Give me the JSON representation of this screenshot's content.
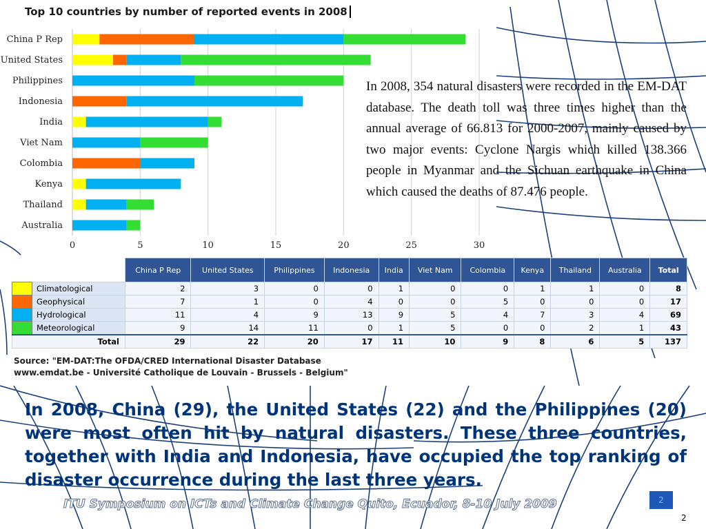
{
  "slide": {
    "paragraph": "In 2008, 354 natural disasters were recorded in the EM-DAT database. The death toll was three times higher than the annual average of 66.813 for 2000-2007, mainly caused by two major events: Cyclone Nargis which killed 138.366 people in Myanmar and the Sichuan earthquake in China which caused the deaths of 87.476 people.",
    "source_line1": "Source: \"EM-DAT:The OFDA/CRED International Disaster Database",
    "source_line2": "www.emdat.be - Université Catholique de Louvain - Brussels - Belgium\"",
    "summary": "In 2008, China (29), the United States (22) and the Philippines (20) were most often hit by natural disasters. These three countries, together with India and Indonesia, have occupied the top ranking of disaster occurrence during the last three years.",
    "footer": "ITU Symposium on ICTs and Climate Change Quito, Ecuador, 8-10 July 2009",
    "page_box": "2",
    "page_number": "2"
  },
  "chart_data": {
    "type": "bar",
    "orientation": "horizontal",
    "stacked": true,
    "title": "Top 10 countries by number of reported events in 2008",
    "categories": [
      "China P Rep",
      "United States",
      "Philippines",
      "Indonesia",
      "India",
      "Viet Nam",
      "Colombia",
      "Kenya",
      "Thailand",
      "Australia"
    ],
    "series": [
      {
        "name": "Climatological",
        "color": "#ffff00",
        "values": [
          2,
          3,
          0,
          0,
          1,
          0,
          0,
          1,
          1,
          0
        ]
      },
      {
        "name": "Geophysical",
        "color": "#ff6600",
        "values": [
          7,
          1,
          0,
          4,
          0,
          0,
          5,
          0,
          0,
          0
        ]
      },
      {
        "name": "Hydrological",
        "color": "#00b0f0",
        "values": [
          11,
          4,
          9,
          13,
          9,
          5,
          4,
          7,
          3,
          4
        ]
      },
      {
        "name": "Meteorological",
        "color": "#33dd33",
        "values": [
          9,
          14,
          11,
          0,
          1,
          5,
          0,
          0,
          2,
          1
        ]
      }
    ],
    "xlim": [
      0,
      30
    ],
    "xticks": [
      "0",
      "5",
      "10",
      "15",
      "20",
      "25",
      "30"
    ],
    "grid": true
  },
  "table": {
    "headers": [
      "China P Rep",
      "United States",
      "Philippines",
      "Indonesia",
      "India",
      "Viet Nam",
      "Colombia",
      "Kenya",
      "Thailand",
      "Australia",
      "Total"
    ],
    "rows": [
      {
        "label": "Climatological",
        "color": "#ffff00",
        "cells": [
          "2",
          "3",
          "0",
          "0",
          "1",
          "0",
          "0",
          "1",
          "1",
          "0",
          "8"
        ]
      },
      {
        "label": "Geophysical",
        "color": "#ff6600",
        "cells": [
          "7",
          "1",
          "0",
          "4",
          "0",
          "0",
          "5",
          "0",
          "0",
          "0",
          "17"
        ]
      },
      {
        "label": "Hydrological",
        "color": "#00b0f0",
        "cells": [
          "11",
          "4",
          "9",
          "13",
          "9",
          "5",
          "4",
          "7",
          "3",
          "4",
          "69"
        ]
      },
      {
        "label": "Meteorological",
        "color": "#33dd33",
        "cells": [
          "9",
          "14",
          "11",
          "0",
          "1",
          "5",
          "0",
          "0",
          "2",
          "1",
          "43"
        ]
      }
    ],
    "total_label": "Total",
    "totals": [
      "29",
      "22",
      "20",
      "17",
      "11",
      "10",
      "9",
      "8",
      "6",
      "5",
      "137"
    ]
  }
}
